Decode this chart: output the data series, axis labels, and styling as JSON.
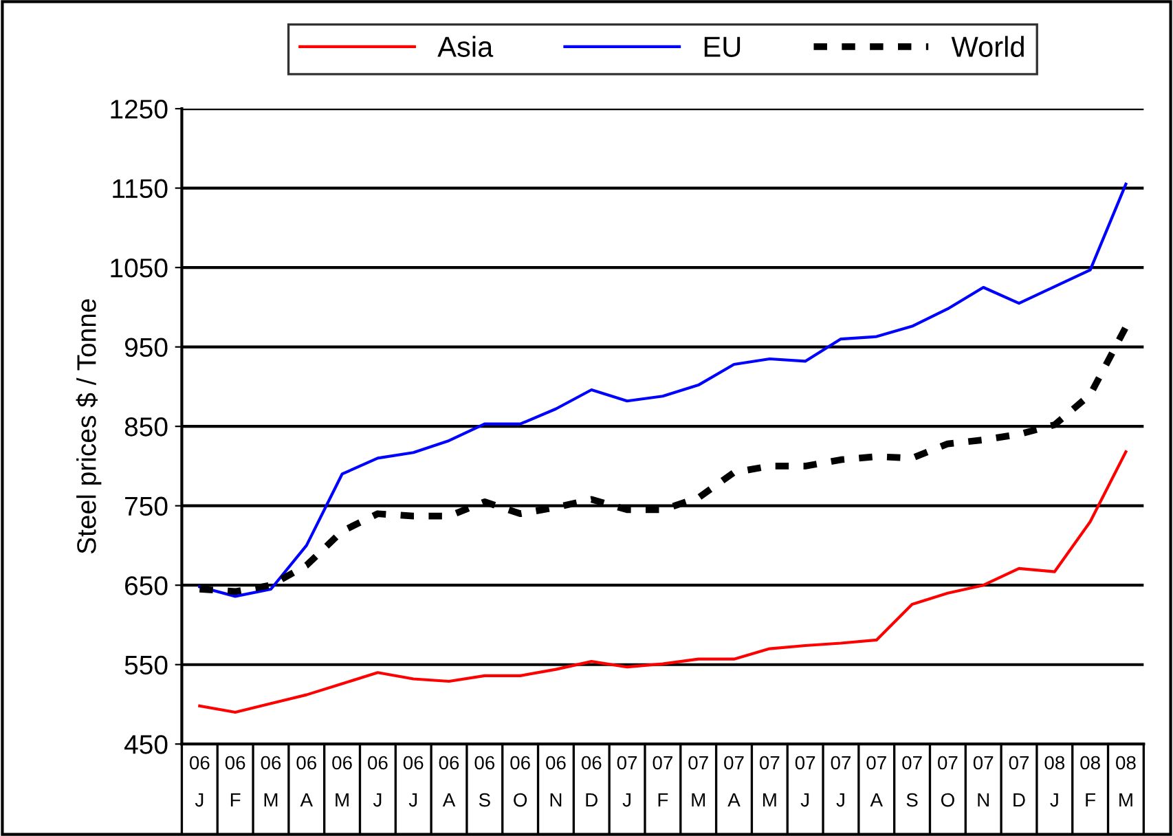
{
  "chart_data": {
    "type": "line",
    "ylabel": "Steel prices $ / Tonne",
    "categories": [
      "06\nJ",
      "06\nF",
      "06\nM",
      "06\nA",
      "06\nM",
      "06\nJ",
      "06\nJ",
      "06\nA",
      "06\nS",
      "06\nO",
      "06\nN",
      "06\nD",
      "07\nJ",
      "07\nF",
      "07\nM",
      "07\nA",
      "07\nM",
      "07\nJ",
      "07\nJ",
      "07\nA",
      "07\nS",
      "07\nO",
      "07\nN",
      "07\nD",
      "08\nJ",
      "08\nF",
      "08\nM"
    ],
    "series": [
      {
        "name": "Asia",
        "color": "#ff0000",
        "line_style": "solid",
        "values": [
          498,
          490,
          501,
          512,
          526,
          540,
          532,
          529,
          536,
          536,
          544,
          554,
          547,
          551,
          557,
          557,
          570,
          574,
          577,
          581,
          626,
          640,
          650,
          671,
          667,
          730,
          818
        ]
      },
      {
        "name": "EU",
        "color": "#0000ff",
        "line_style": "solid",
        "values": [
          648,
          636,
          645,
          700,
          790,
          810,
          817,
          832,
          853,
          853,
          872,
          896,
          882,
          888,
          902,
          928,
          935,
          932,
          960,
          963,
          976,
          998,
          1025,
          1005,
          1026,
          1047,
          1155
        ]
      },
      {
        "name": "World",
        "color": "#000000",
        "line_style": "dashed",
        "values": [
          645,
          642,
          650,
          675,
          718,
          740,
          737,
          737,
          755,
          740,
          748,
          758,
          745,
          745,
          760,
          792,
          800,
          800,
          808,
          812,
          810,
          828,
          833,
          840,
          852,
          890,
          975
        ]
      }
    ],
    "ylim": [
      450,
      1250
    ],
    "yticks": [
      450,
      550,
      650,
      750,
      850,
      950,
      1050,
      1150,
      1250
    ],
    "grid": "y",
    "legend": "top",
    "marker": "none"
  }
}
